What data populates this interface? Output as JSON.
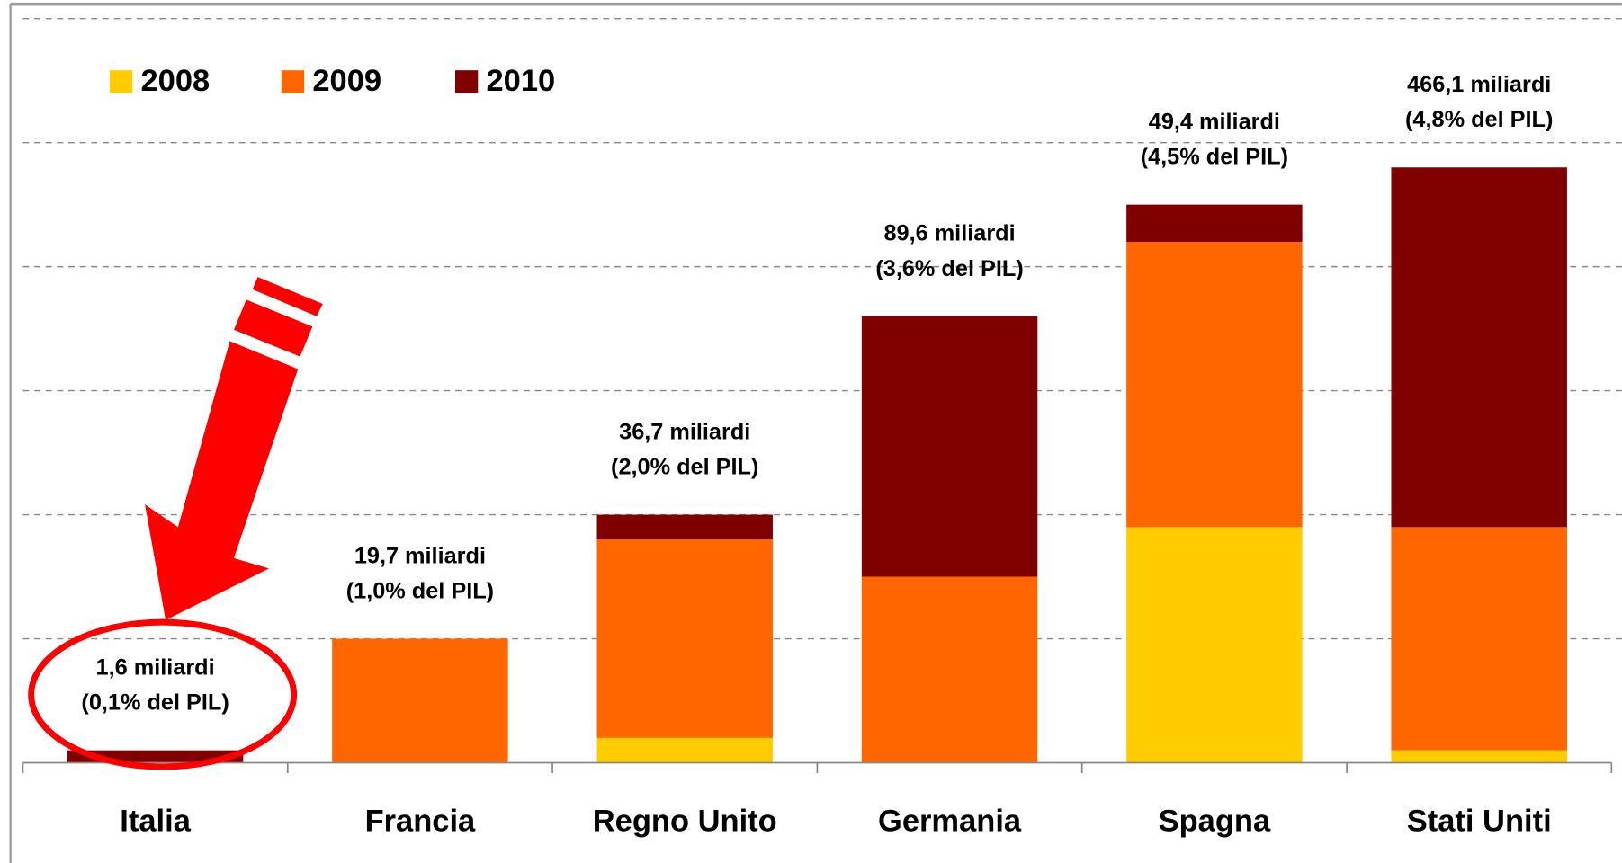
{
  "chart_data": {
    "type": "stacked_bar",
    "categories": [
      "Italia",
      "Francia",
      "Regno Unito",
      "Germania",
      "Spagna",
      "Stati Uniti"
    ],
    "series": [
      {
        "name": "2008",
        "color": "#ffcc00",
        "values": [
          0,
          0,
          0.2,
          0,
          1.9,
          0.1
        ]
      },
      {
        "name": "2009",
        "color": "#ff6600",
        "values": [
          0,
          1.0,
          1.6,
          1.5,
          2.3,
          1.8
        ]
      },
      {
        "name": "2010",
        "color": "#800000",
        "values": [
          0.1,
          0,
          0.2,
          2.1,
          0.3,
          2.9
        ]
      }
    ],
    "annotations": [
      {
        "amount": "1,6 miliardi",
        "share": "(0,1% del PIL)"
      },
      {
        "amount": "19,7 miliardi",
        "share": "(1,0% del PIL)"
      },
      {
        "amount": "36,7 miliardi",
        "share": "(2,0% del PIL)"
      },
      {
        "amount": "89,6 miliardi",
        "share": "(3,6% del PIL)"
      },
      {
        "amount": "49,4 miliardi",
        "share": "(4,5% del PIL)"
      },
      {
        "amount": "466,1 miliardi",
        "share": "(4,8% del PIL)"
      }
    ],
    "ylim": [
      0,
      6
    ],
    "yticks": [
      1,
      2,
      3,
      4,
      5,
      6
    ],
    "grid": true,
    "legend": "top-left"
  }
}
